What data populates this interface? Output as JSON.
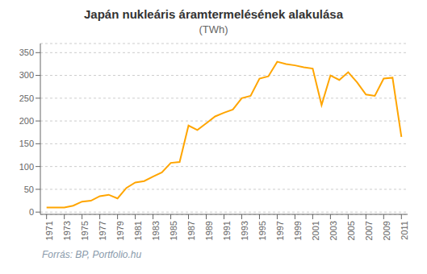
{
  "chart_data": {
    "type": "line",
    "title": "Japán nukleáris áramtermelésének alakulása",
    "subtitle": "(TWh)",
    "annotations": [
      "Forrás: BP, Portfolio.hu"
    ],
    "x": [
      1971,
      1972,
      1973,
      1974,
      1975,
      1976,
      1977,
      1978,
      1979,
      1980,
      1981,
      1982,
      1983,
      1984,
      1985,
      1986,
      1987,
      1988,
      1989,
      1990,
      1991,
      1992,
      1993,
      1994,
      1995,
      1996,
      1997,
      1998,
      1999,
      2000,
      2001,
      2002,
      2003,
      2004,
      2005,
      2006,
      2007,
      2008,
      2009,
      2010,
      2011
    ],
    "values": [
      10,
      10,
      10,
      14,
      23,
      25,
      35,
      38,
      30,
      53,
      65,
      68,
      78,
      87,
      108,
      110,
      190,
      180,
      195,
      210,
      218,
      225,
      250,
      255,
      293,
      298,
      330,
      325,
      322,
      318,
      315,
      235,
      300,
      290,
      307,
      285,
      258,
      255,
      293,
      295,
      165
    ],
    "color": "#FFA500",
    "xlim": [
      1970.3,
      2011.7
    ],
    "xticks": [
      1971,
      1973,
      1975,
      1977,
      1979,
      1981,
      1983,
      1985,
      1987,
      1989,
      1991,
      1993,
      1995,
      1997,
      1999,
      2001,
      2003,
      2005,
      2007,
      2009,
      2011
    ],
    "ylim": [
      -5,
      370
    ],
    "yticks": [
      0,
      50,
      100,
      150,
      200,
      250,
      300,
      350
    ],
    "grid": true
  }
}
